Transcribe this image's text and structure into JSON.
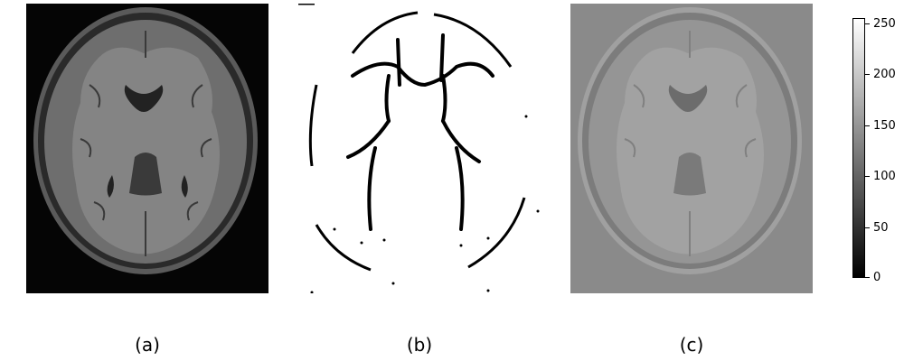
{
  "panels": [
    {
      "caption": "(a)",
      "description": "axial brain MRI, grayscale"
    },
    {
      "caption": "(b)",
      "description": "binary map, white matter structures black on white"
    },
    {
      "caption": "(c)",
      "description": "smoothed brain MRI on gray background"
    }
  ],
  "colorbar": {
    "ticks": [
      "250",
      "200",
      "150",
      "100",
      "50",
      "0"
    ],
    "min": 0,
    "max": 255
  }
}
